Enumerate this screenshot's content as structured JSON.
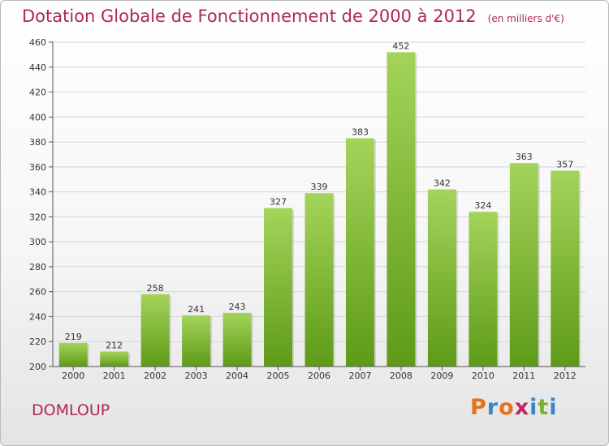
{
  "title": "Dotation Globale de Fonctionnement de 2000 à 2012",
  "unit_note": "(en milliers d'€)",
  "commune": "DOMLOUP",
  "brand": {
    "letters": [
      "P",
      "r",
      "o",
      "x",
      "i",
      "t",
      "i"
    ],
    "colors": [
      "#e8701a",
      "#3a86c8",
      "#e8701a",
      "#c0266a",
      "#3a86c8",
      "#79b32c",
      "#3a86c8"
    ]
  },
  "colors": {
    "bar_light": "#a4d45a",
    "bar_dark": "#5e9a18",
    "grid": "#d5d5d5",
    "title": "#b0265e"
  },
  "chart_data": {
    "type": "bar",
    "title": "Dotation Globale de Fonctionnement de 2000 à 2012",
    "subtitle": "(en milliers d'€)",
    "xlabel": "",
    "ylabel": "",
    "categories": [
      "2000",
      "2001",
      "2002",
      "2003",
      "2004",
      "2005",
      "2006",
      "2007",
      "2008",
      "2009",
      "2010",
      "2011",
      "2012"
    ],
    "values": [
      219,
      212,
      258,
      241,
      243,
      327,
      339,
      383,
      452,
      342,
      324,
      363,
      357
    ],
    "ylim": [
      200,
      460
    ],
    "yticks": [
      200,
      220,
      240,
      260,
      280,
      300,
      320,
      340,
      360,
      380,
      400,
      420,
      440,
      460
    ],
    "grid": true,
    "legend": "none"
  }
}
